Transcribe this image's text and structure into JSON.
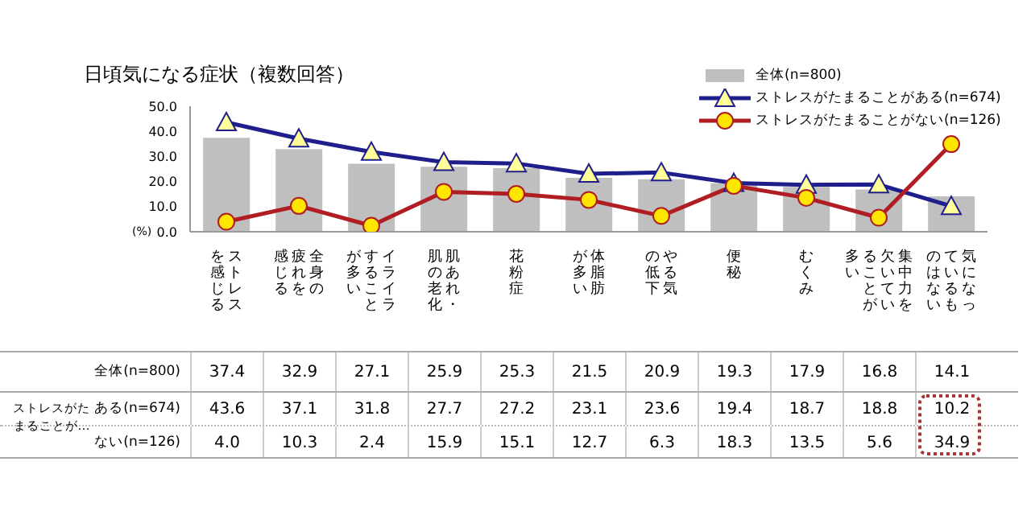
{
  "chart_data": {
    "type": "bar",
    "title": "日頃気になる症状（複数回答）",
    "ylabel": "(%)",
    "categories": [
      "ストレスを感じる",
      "全身の疲れを感じる",
      "イライラすることが多い",
      "肌あれ・肌の老化",
      "花粉症",
      "体脂肪が多い",
      "やる気の低下",
      "便秘",
      "むくみ",
      "集中力を欠いていることが多い",
      "気になっているものはない"
    ],
    "series": [
      {
        "name": "全体(n=800)",
        "color": "#bfbfbf",
        "values": [
          37.4,
          32.9,
          27.1,
          25.9,
          25.3,
          21.5,
          20.9,
          19.3,
          17.9,
          16.8,
          14.1
        ],
        "value_labels": [
          "37.4",
          "32.9",
          "27.1",
          "25.9",
          "25.3",
          "21.5",
          "20.9",
          "19.3",
          "17.9",
          "16.8",
          "14.1"
        ]
      },
      {
        "name": "ストレスがたまることがある(n=674)",
        "type": "line",
        "color": "#1f1f8c",
        "marker": "triangle",
        "values": [
          43.6,
          37.1,
          31.8,
          27.7,
          27.2,
          23.1,
          23.6,
          19.4,
          18.7,
          18.8,
          10.2
        ],
        "value_labels": [
          "43.6",
          "37.1",
          "31.8",
          "27.7",
          "27.2",
          "23.1",
          "23.6",
          "19.4",
          "18.7",
          "18.8",
          "10.2"
        ]
      },
      {
        "name": "ストレスがたまることがない(n=126)",
        "type": "line",
        "color": "#b01e23",
        "marker": "circle",
        "values": [
          4.0,
          10.3,
          2.4,
          15.9,
          15.1,
          12.7,
          6.3,
          18.3,
          13.5,
          5.6,
          34.9
        ],
        "value_labels": [
          "4.0",
          "10.3",
          "2.4",
          "15.9",
          "15.1",
          "12.7",
          "6.3",
          "18.3",
          "13.5",
          "5.6",
          "34.9"
        ]
      }
    ],
    "ylim": [
      0,
      50
    ],
    "yticks": [
      {
        "value": 0,
        "label": "0.0"
      },
      {
        "value": 10,
        "label": "10.0"
      },
      {
        "value": 20,
        "label": "20.0"
      },
      {
        "value": 30,
        "label": "30.0"
      },
      {
        "value": 40,
        "label": "40.0"
      },
      {
        "value": 50,
        "label": "50.0"
      }
    ],
    "legend": "top right",
    "annotations": [
      "ストレスがたまることが…",
      "ある(n=674)",
      "ない(n=126)"
    ]
  }
}
